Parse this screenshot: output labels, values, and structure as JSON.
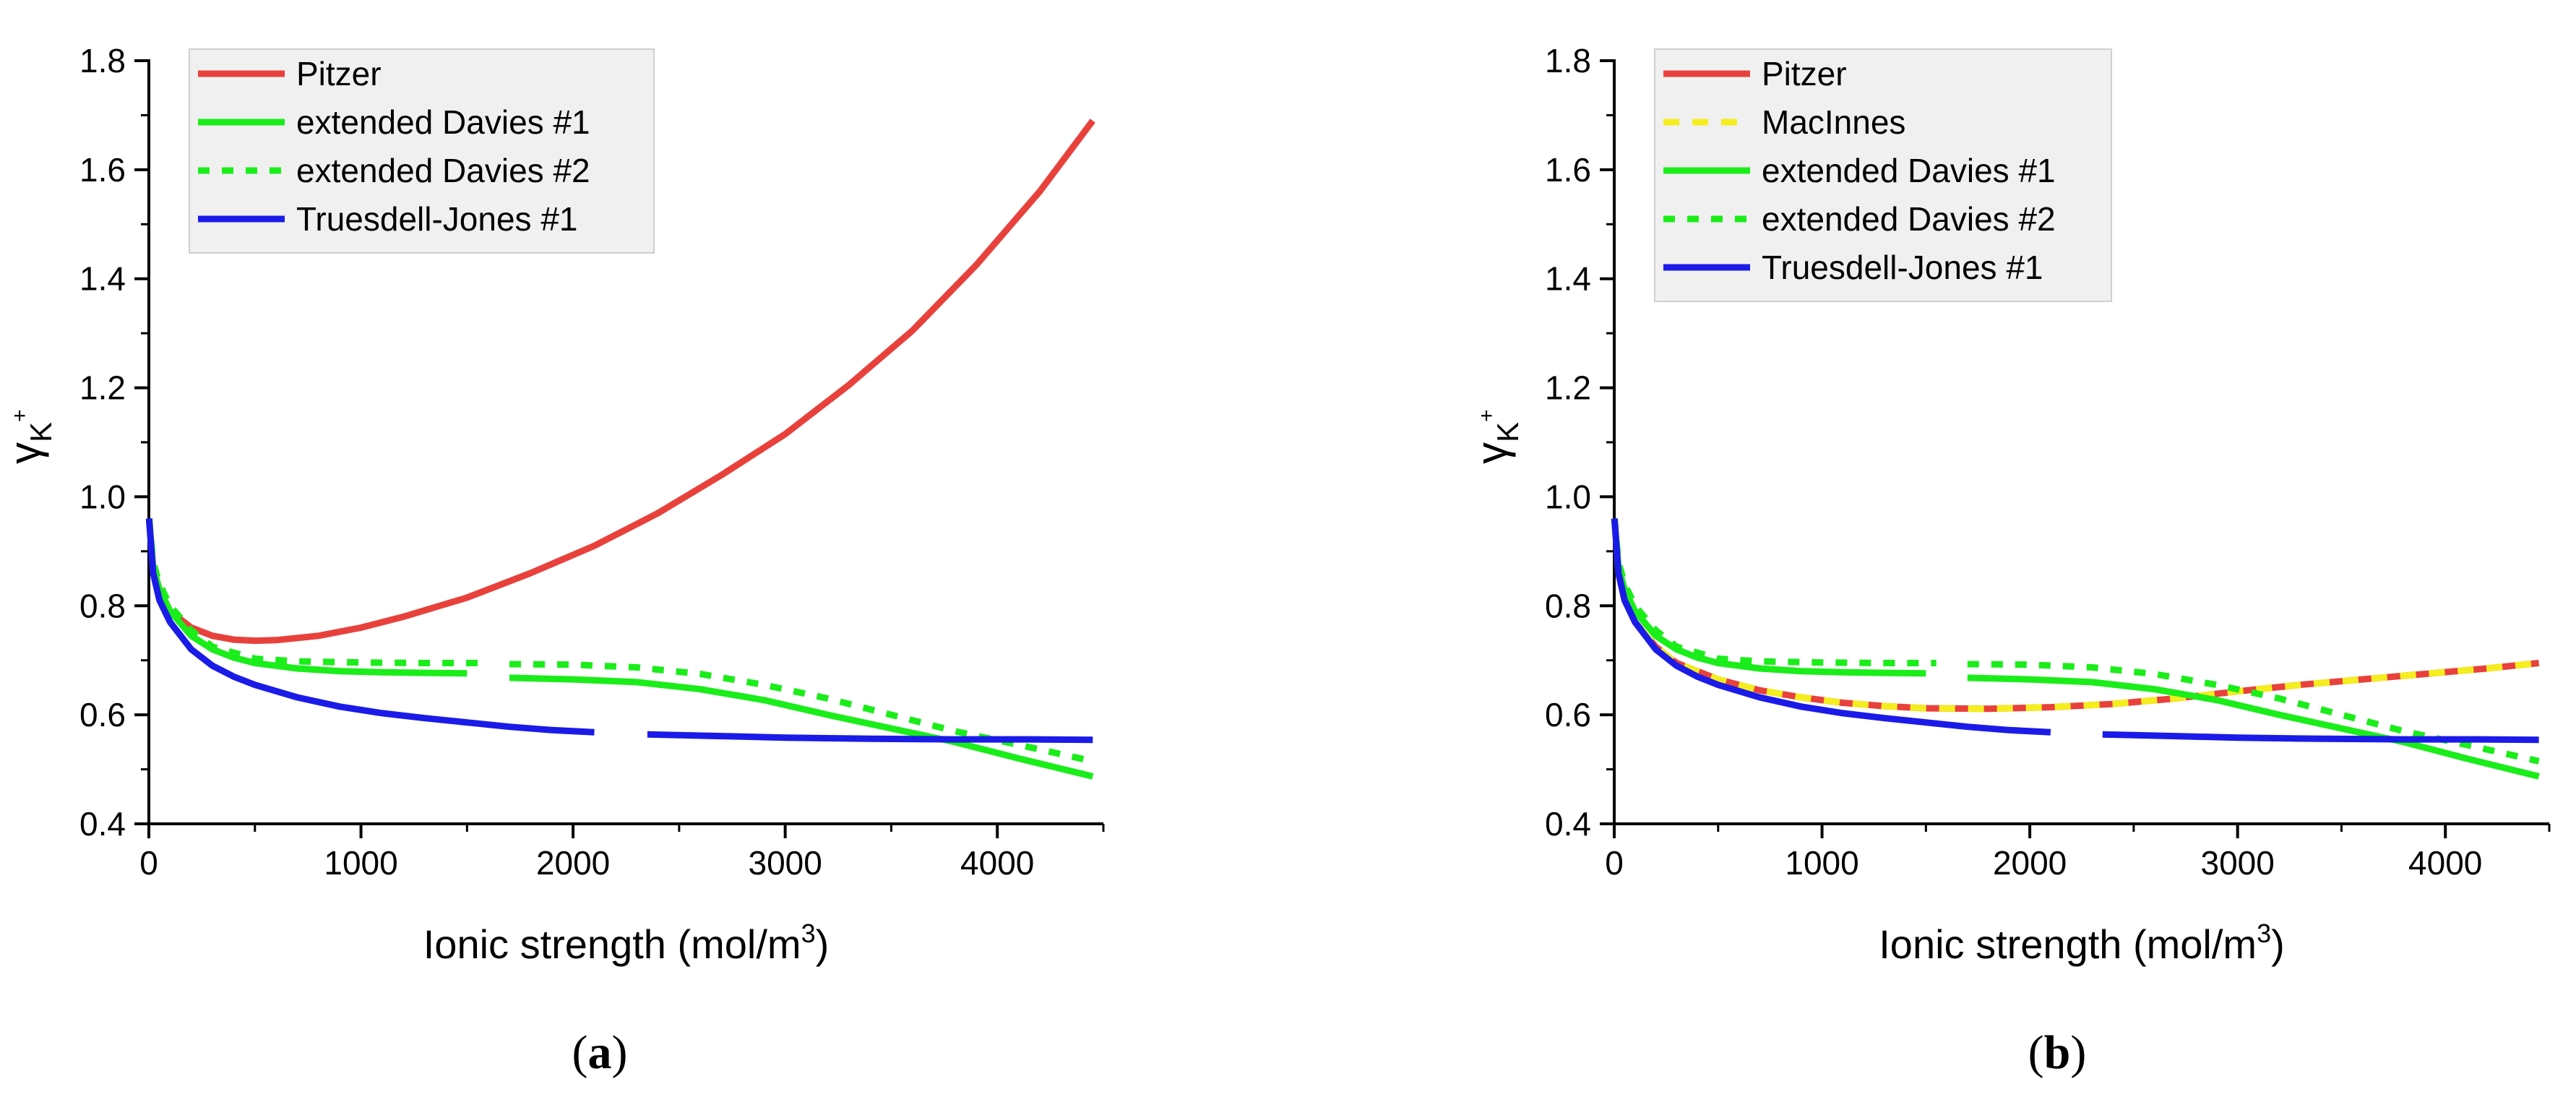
{
  "chart_data": [
    {
      "type": "line",
      "panel_label": "(a)",
      "xlabel": "Ionic strength (mol/m",
      "xlabel_sup": "3",
      "xlabel_close": ")",
      "ylabel_main": "γ",
      "ylabel_sub": "K",
      "ylabel_sup": "+",
      "xlim": [
        0,
        4500
      ],
      "ylim": [
        0.4,
        1.8
      ],
      "x_ticks": [
        0,
        1000,
        2000,
        3000,
        4000
      ],
      "x_tick_labels": [
        "0",
        "1000",
        "2000",
        "3000",
        "4000"
      ],
      "y_ticks": [
        0.4,
        0.6,
        0.8,
        1.0,
        1.2,
        1.4,
        1.6,
        1.8
      ],
      "y_tick_labels": [
        "0.4",
        "0.6",
        "0.8",
        "1.0",
        "1.2",
        "1.4",
        "1.6",
        "1.8"
      ],
      "legend_position": "top-left",
      "series": [
        {
          "name": "Pitzer",
          "color": "#e8413c",
          "dash": "solid",
          "x": [
            1,
            20,
            50,
            100,
            200,
            300,
            400,
            500,
            600,
            800,
            1000,
            1200,
            1500,
            1800,
            2100,
            2400,
            2700,
            3000,
            3300,
            3600,
            3900,
            4200,
            4450
          ],
          "y": [
            0.96,
            0.87,
            0.83,
            0.79,
            0.76,
            0.745,
            0.738,
            0.736,
            0.737,
            0.745,
            0.76,
            0.78,
            0.815,
            0.86,
            0.91,
            0.97,
            1.04,
            1.115,
            1.205,
            1.305,
            1.425,
            1.56,
            1.69
          ]
        },
        {
          "name": "extended Davies #1",
          "color": "#1aed1a",
          "dash": "solid",
          "x": [
            1,
            20,
            50,
            100,
            200,
            300,
            400,
            500,
            700,
            900,
            1100,
            1300,
            1500,
            null,
            1700,
            2000,
            2300,
            2600,
            2900,
            3200,
            3500,
            3800,
            4100,
            4450
          ],
          "y": [
            0.96,
            0.87,
            0.83,
            0.79,
            0.745,
            0.72,
            0.705,
            0.695,
            0.685,
            0.68,
            0.678,
            0.677,
            0.676,
            null,
            0.668,
            0.665,
            0.66,
            0.647,
            0.627,
            0.6,
            0.575,
            0.55,
            0.52,
            0.487
          ]
        },
        {
          "name": "extended Davies #2",
          "color": "#1aed1a",
          "dash": "dotted",
          "x": [
            1,
            20,
            50,
            100,
            200,
            300,
            500,
            700,
            1000,
            1300,
            1550,
            null,
            1700,
            2000,
            2300,
            2600,
            2900,
            3200,
            3500,
            3800,
            4100,
            4450
          ],
          "y": [
            0.96,
            0.88,
            0.84,
            0.8,
            0.755,
            0.725,
            0.703,
            0.698,
            0.696,
            0.695,
            0.695,
            null,
            0.693,
            0.692,
            0.687,
            0.675,
            0.655,
            0.63,
            0.6,
            0.57,
            0.545,
            0.515
          ]
        },
        {
          "name": "Truesdell-Jones #1",
          "color": "#1b1be8",
          "dash": "solid",
          "x": [
            1,
            20,
            50,
            100,
            200,
            300,
            400,
            500,
            700,
            900,
            1100,
            1300,
            1500,
            1700,
            1900,
            2100,
            null,
            2350,
            2700,
            3000,
            3400,
            3800,
            4150,
            4450
          ],
          "y": [
            0.96,
            0.86,
            0.81,
            0.77,
            0.72,
            0.69,
            0.67,
            0.655,
            0.632,
            0.615,
            0.603,
            0.594,
            0.586,
            0.578,
            0.572,
            0.568,
            null,
            0.564,
            0.561,
            0.558,
            0.556,
            0.555,
            0.555,
            0.554
          ]
        }
      ]
    },
    {
      "type": "line",
      "panel_label": "(b)",
      "xlabel": "Ionic strength (mol/m",
      "xlabel_sup": "3",
      "xlabel_close": ")",
      "ylabel_main": "γ",
      "ylabel_sub": "K",
      "ylabel_sup": "+",
      "xlim": [
        0,
        4500
      ],
      "ylim": [
        0.4,
        1.8
      ],
      "x_ticks": [
        0,
        1000,
        2000,
        3000,
        4000
      ],
      "x_tick_labels": [
        "0",
        "1000",
        "2000",
        "3000",
        "4000"
      ],
      "y_ticks": [
        0.4,
        0.6,
        0.8,
        1.0,
        1.2,
        1.4,
        1.6,
        1.8
      ],
      "y_tick_labels": [
        "0.4",
        "0.6",
        "0.8",
        "1.0",
        "1.2",
        "1.4",
        "1.6",
        "1.8"
      ],
      "legend_position": "top-left",
      "series": [
        {
          "name": "Pitzer",
          "color": "#e8413c",
          "dash": "solid",
          "x": [
            1,
            20,
            50,
            100,
            200,
            300,
            500,
            700,
            900,
            1100,
            1300,
            1500,
            1800,
            2100,
            2400,
            2700,
            3000,
            3300,
            3600,
            3900,
            4200,
            4450
          ],
          "y": [
            0.96,
            0.86,
            0.81,
            0.77,
            0.725,
            0.695,
            0.665,
            0.645,
            0.632,
            0.622,
            0.616,
            0.612,
            0.611,
            0.614,
            0.62,
            0.63,
            0.643,
            0.655,
            0.665,
            0.675,
            0.685,
            0.695
          ]
        },
        {
          "name": "MacInnes",
          "color": "#f5ee1e",
          "dash": "dashed",
          "x": [
            1,
            20,
            50,
            100,
            200,
            300,
            500,
            700,
            900,
            1100,
            1300,
            1500,
            1800,
            2100,
            2400,
            2700,
            3000,
            3300,
            3600,
            3900,
            4200,
            4450
          ],
          "y": [
            0.96,
            0.86,
            0.81,
            0.77,
            0.725,
            0.695,
            0.665,
            0.645,
            0.632,
            0.622,
            0.616,
            0.612,
            0.611,
            0.614,
            0.62,
            0.63,
            0.643,
            0.655,
            0.665,
            0.675,
            0.685,
            0.695
          ]
        },
        {
          "name": "extended Davies #1",
          "color": "#1aed1a",
          "dash": "solid",
          "x": [
            1,
            20,
            50,
            100,
            200,
            300,
            400,
            500,
            700,
            900,
            1100,
            1300,
            1500,
            null,
            1700,
            2000,
            2300,
            2600,
            2900,
            3200,
            3500,
            3800,
            4100,
            4450
          ],
          "y": [
            0.96,
            0.87,
            0.83,
            0.79,
            0.745,
            0.72,
            0.705,
            0.695,
            0.685,
            0.68,
            0.678,
            0.677,
            0.676,
            null,
            0.668,
            0.665,
            0.66,
            0.647,
            0.627,
            0.6,
            0.575,
            0.55,
            0.52,
            0.487
          ]
        },
        {
          "name": "extended Davies #2",
          "color": "#1aed1a",
          "dash": "dotted",
          "x": [
            1,
            20,
            50,
            100,
            200,
            300,
            500,
            700,
            1000,
            1300,
            1550,
            null,
            1700,
            2000,
            2300,
            2600,
            2900,
            3200,
            3500,
            3800,
            4100,
            4450
          ],
          "y": [
            0.96,
            0.88,
            0.84,
            0.8,
            0.755,
            0.725,
            0.703,
            0.698,
            0.696,
            0.695,
            0.695,
            null,
            0.693,
            0.692,
            0.687,
            0.675,
            0.655,
            0.63,
            0.6,
            0.57,
            0.545,
            0.515
          ]
        },
        {
          "name": "Truesdell-Jones #1",
          "color": "#1b1be8",
          "dash": "solid",
          "x": [
            1,
            20,
            50,
            100,
            200,
            300,
            400,
            500,
            700,
            900,
            1100,
            1300,
            1500,
            1700,
            1900,
            2100,
            null,
            2350,
            2700,
            3000,
            3400,
            3800,
            4150,
            4450
          ],
          "y": [
            0.96,
            0.86,
            0.81,
            0.77,
            0.72,
            0.69,
            0.67,
            0.655,
            0.632,
            0.615,
            0.603,
            0.594,
            0.586,
            0.578,
            0.572,
            0.568,
            null,
            0.564,
            0.561,
            0.558,
            0.556,
            0.555,
            0.555,
            0.554
          ]
        }
      ]
    }
  ]
}
